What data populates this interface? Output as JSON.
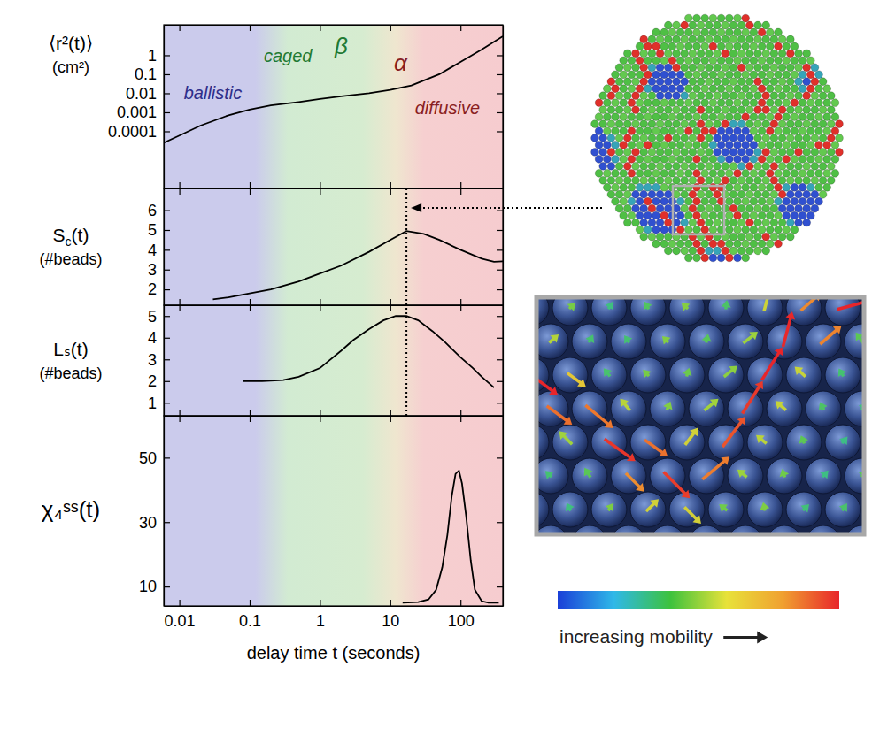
{
  "chart_data": [
    {
      "type": "line",
      "ylabel": [
        "⟨r²(t)⟩",
        "(cm²)"
      ],
      "log": true,
      "color": "#000000",
      "xlim": [
        0.006,
        400
      ],
      "xticks": [
        0.01,
        0.1,
        1,
        10,
        100
      ],
      "ylim": [
        1e-07,
        40
      ],
      "yticks": [
        0.0001,
        0.001,
        0.01,
        0.1,
        1
      ],
      "tick_labels": "y",
      "x": [
        0.006,
        0.01,
        0.02,
        0.05,
        0.1,
        0.2,
        0.5,
        1,
        2,
        5,
        10,
        20,
        50,
        100,
        200,
        400
      ],
      "values": [
        2.5e-05,
        6e-05,
        0.0002,
        0.0007,
        0.0014,
        0.0023,
        0.0035,
        0.005,
        0.007,
        0.01,
        0.015,
        0.026,
        0.1,
        0.45,
        2,
        10
      ],
      "annotations": [
        {
          "text": "ballistic",
          "x": 0.03,
          "y": 0.005,
          "color": "#2e2e8a"
        },
        {
          "text": "caged",
          "x": 0.35,
          "y": 0.45,
          "color": "#1f7a33"
        },
        {
          "text": "β",
          "x": 2,
          "y": 1.2,
          "color": "#1f7a33"
        },
        {
          "text": "α",
          "x": 14,
          "y": 0.15,
          "color": "#8a1f1f"
        },
        {
          "text": "diffusive",
          "x": 65,
          "y": 0.0008,
          "color": "#8a1f1f"
        }
      ]
    },
    {
      "type": "line",
      "ylabel": [
        "Sc(t)",
        "(#beads)"
      ],
      "log": "x",
      "color": "#000000",
      "xlim": [
        0.006,
        400
      ],
      "xticks": [
        0.01,
        0.1,
        1,
        10,
        100
      ],
      "ylim": [
        1.2,
        7.1
      ],
      "yticks": [
        2,
        3,
        4,
        5,
        6
      ],
      "tick_labels": "y",
      "x": [
        0.03,
        0.05,
        0.1,
        0.2,
        0.5,
        1,
        2,
        5,
        10,
        17,
        30,
        50,
        100,
        200,
        300,
        400
      ],
      "values": [
        1.5,
        1.6,
        1.8,
        2.0,
        2.4,
        2.8,
        3.2,
        3.9,
        4.5,
        4.95,
        4.8,
        4.5,
        4.0,
        3.55,
        3.4,
        3.42
      ]
    },
    {
      "type": "line",
      "ylabel": [
        "Lₛ(t)",
        "(#beads)"
      ],
      "log": "x",
      "color": "#000000",
      "xlim": [
        0.006,
        400
      ],
      "xticks": [
        0.01,
        0.1,
        1,
        10,
        100
      ],
      "ylim": [
        0.4,
        5.5
      ],
      "yticks": [
        1,
        2,
        3,
        4,
        5
      ],
      "tick_labels": "y",
      "x": [
        0.08,
        0.15,
        0.3,
        0.5,
        1,
        2,
        3,
        5,
        8,
        12,
        17,
        25,
        40,
        60,
        100,
        150,
        200,
        300
      ],
      "values": [
        2,
        2,
        2.05,
        2.2,
        2.6,
        3.4,
        3.9,
        4.4,
        4.8,
        5,
        5,
        4.8,
        4.3,
        3.8,
        3.1,
        2.6,
        2.2,
        1.7
      ]
    },
    {
      "type": "line",
      "ylabel": [
        "χ₄ˢˢ(t)"
      ],
      "log": "x",
      "color": "#000000",
      "xlabel": "delay time t (seconds)",
      "xlim": [
        0.006,
        400
      ],
      "xticks": [
        0.01,
        0.1,
        1,
        10,
        100
      ],
      "ylim": [
        4,
        63
      ],
      "yticks": [
        10,
        30,
        50
      ],
      "x": [
        15,
        25,
        35,
        45,
        55,
        65,
        75,
        85,
        95,
        105,
        120,
        140,
        160,
        200,
        250,
        350
      ],
      "values": [
        5,
        5.2,
        6,
        9,
        16,
        26,
        38,
        45,
        46,
        42,
        32,
        18,
        9,
        5.5,
        5,
        5
      ]
    }
  ],
  "figure": {
    "peak_time": 17,
    "background": [
      {
        "x": 0.006,
        "color": "#cbcbec"
      },
      {
        "x": 0.12,
        "color": "#cbcbec"
      },
      {
        "x": 0.35,
        "color": "#d2ebd2"
      },
      {
        "x": 4,
        "color": "#d6ecd0"
      },
      {
        "x": 12,
        "color": "#efe6cf"
      },
      {
        "x": 30,
        "color": "#f6cfd0"
      },
      {
        "x": 400,
        "color": "#f6cccf"
      }
    ],
    "colorbar_colors": [
      "#1a3fd8",
      "#2fb8e8",
      "#3dc23d",
      "#e8e23a",
      "#f0a030",
      "#e8252a"
    ],
    "colorbar_label": "increasing mobility"
  }
}
